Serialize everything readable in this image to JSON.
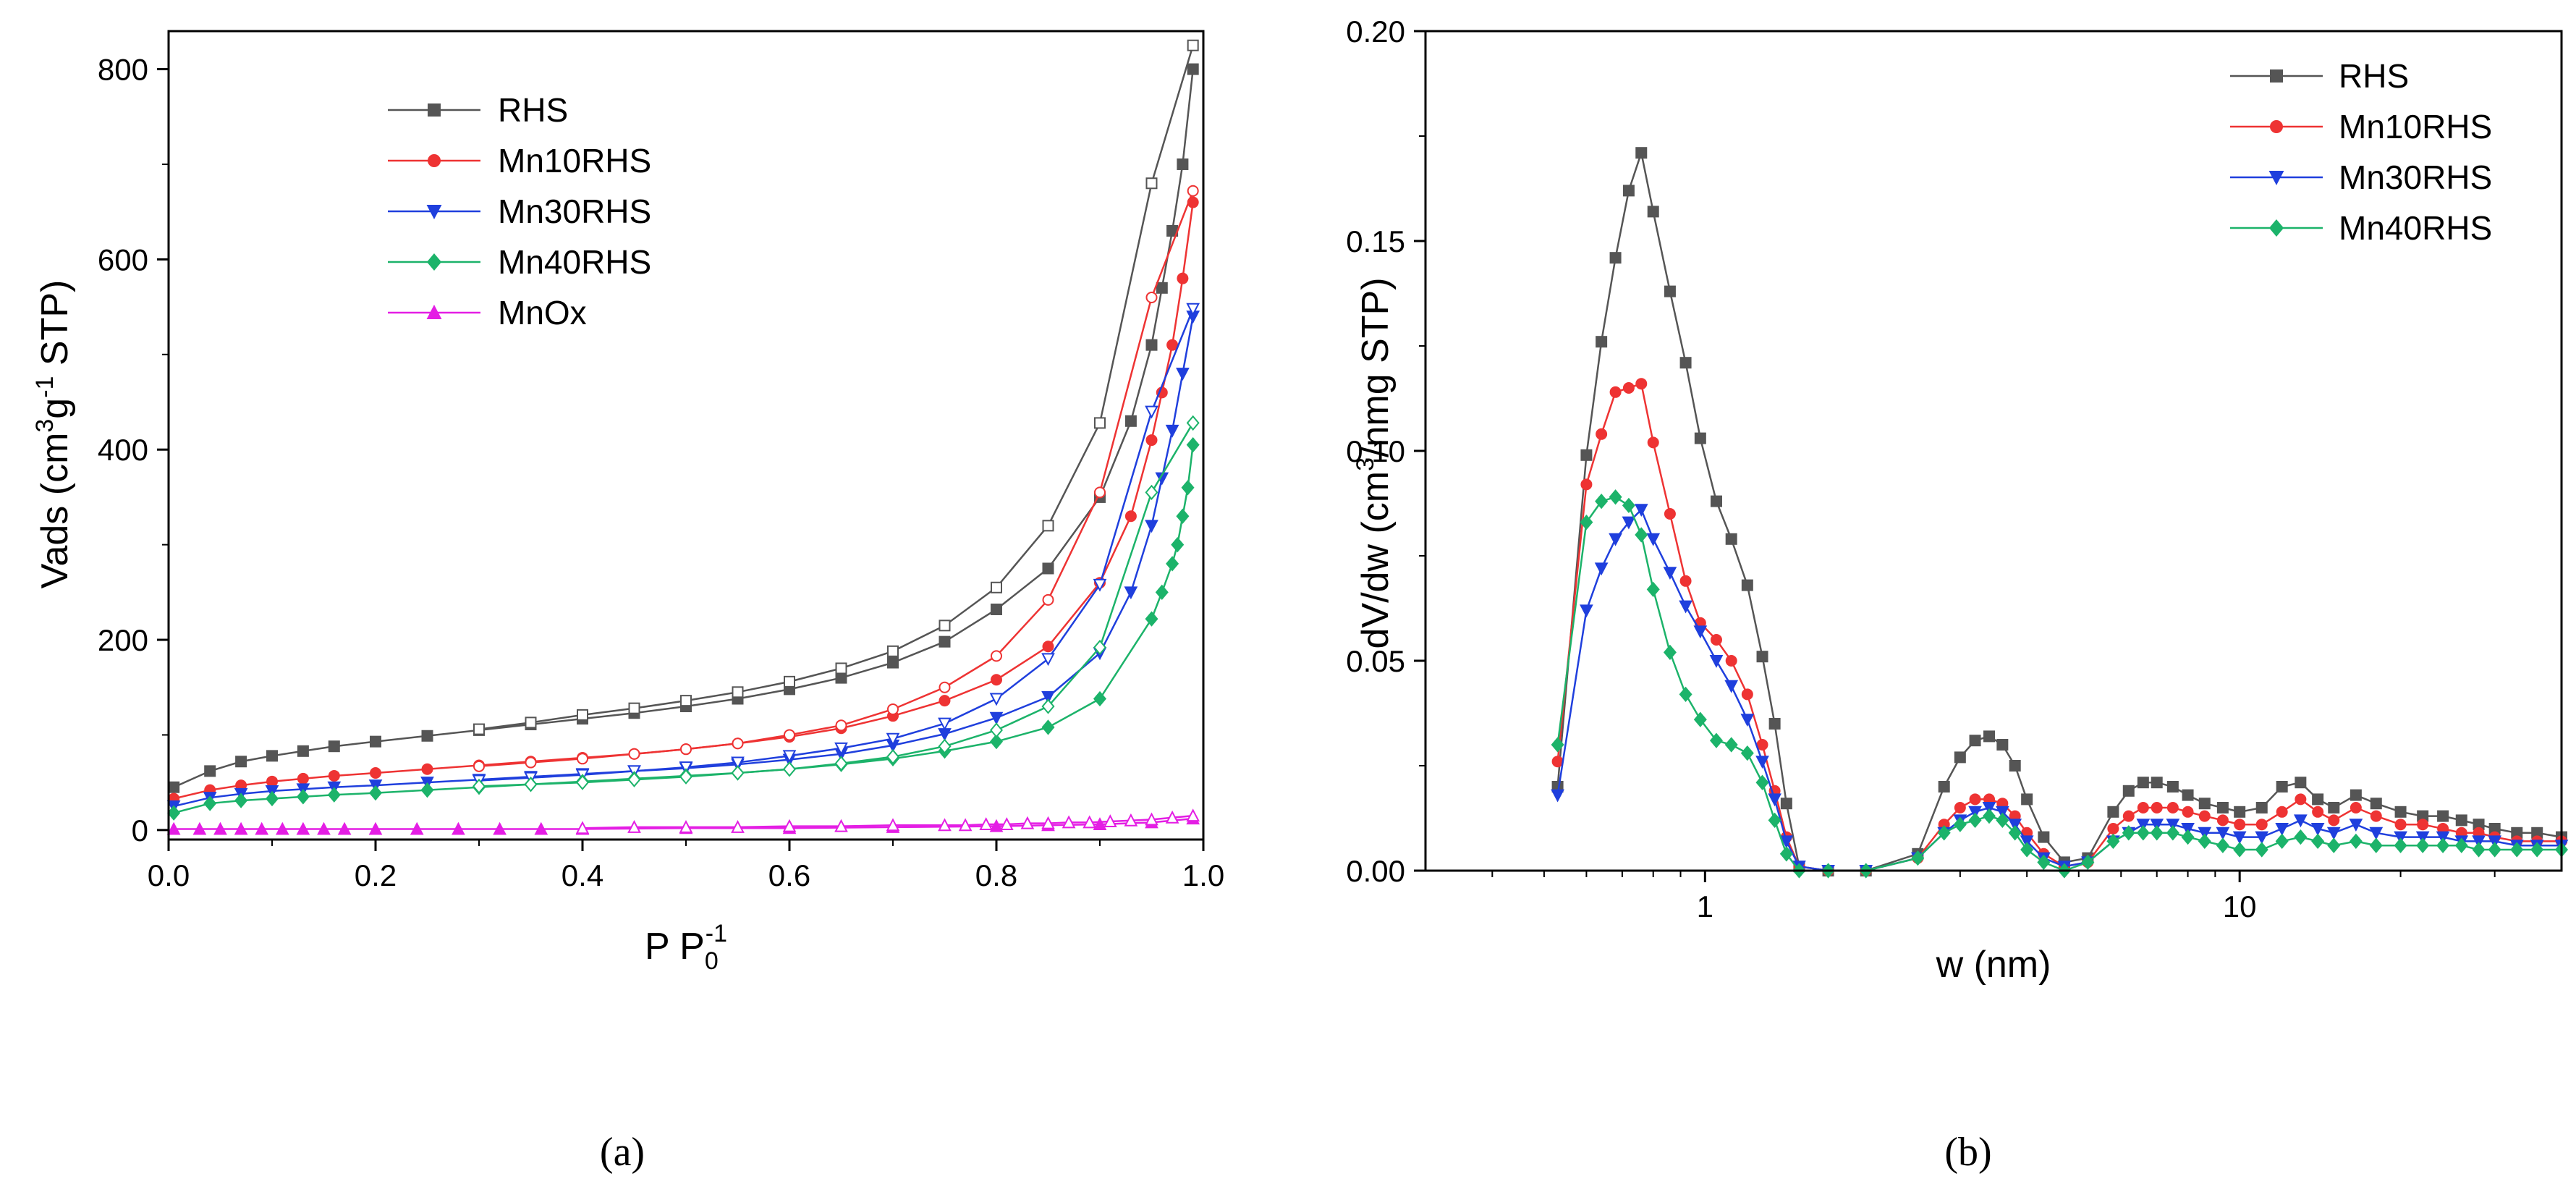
{
  "panels": {
    "a_label": "(a)",
    "b_label": "(b)"
  },
  "chart_data": [
    {
      "type": "scatter",
      "id": "a",
      "title": "",
      "xlabel": "P P",
      "xlabel_sub": "0",
      "xlabel_sup": "-1",
      "ylabel": "Vads (cm",
      "ylabel_sup1": "3",
      "ylabel_mid": "g",
      "ylabel_sup2": "-1",
      "ylabel_end": " STP)",
      "xlim": [
        0.0,
        1.0
      ],
      "ylim": [
        -10,
        840
      ],
      "xticks": [
        "0.0",
        "0.2",
        "0.4",
        "0.6",
        "0.8",
        "1.0"
      ],
      "yticks": [
        "0",
        "200",
        "400",
        "600",
        "800"
      ],
      "legend": [
        "RHS",
        "Mn10RHS",
        "Mn30RHS",
        "Mn40RHS",
        "MnOx"
      ],
      "series": [
        {
          "name": "RHS",
          "color": "#555555",
          "marker": "square",
          "adsorption": {
            "x": [
              0.005,
              0.04,
              0.07,
              0.1,
              0.13,
              0.16,
              0.2,
              0.25,
              0.3,
              0.35,
              0.4,
              0.45,
              0.5,
              0.55,
              0.6,
              0.65,
              0.7,
              0.75,
              0.8,
              0.85,
              0.9,
              0.93,
              0.95,
              0.96,
              0.97,
              0.98,
              0.99
            ],
            "y": [
              45,
              62,
              72,
              78,
              83,
              88,
              93,
              99,
              105,
              111,
              117,
              123,
              130,
              138,
              148,
              160,
              176,
              198,
              232,
              275,
              350,
              430,
              510,
              570,
              630,
              700,
              800
            ]
          },
          "desorption": {
            "x": [
              0.99,
              0.95,
              0.9,
              0.85,
              0.8,
              0.75,
              0.7,
              0.65,
              0.6,
              0.55,
              0.5,
              0.45,
              0.4,
              0.35,
              0.3
            ],
            "y": [
              825,
              680,
              428,
              320,
              255,
              215,
              188,
              170,
              156,
              145,
              136,
              128,
              121,
              113,
              106
            ]
          }
        },
        {
          "name": "Mn10RHS",
          "color": "#ee3333",
          "marker": "circle",
          "adsorption": {
            "x": [
              0.005,
              0.04,
              0.07,
              0.1,
              0.13,
              0.16,
              0.2,
              0.25,
              0.3,
              0.35,
              0.4,
              0.45,
              0.5,
              0.55,
              0.6,
              0.65,
              0.7,
              0.75,
              0.8,
              0.85,
              0.9,
              0.93,
              0.95,
              0.96,
              0.97,
              0.98,
              0.99
            ],
            "y": [
              33,
              42,
              47,
              51,
              54,
              57,
              60,
              64,
              68,
              72,
              76,
              80,
              85,
              91,
              98,
              107,
              120,
              136,
              158,
              193,
              260,
              330,
              410,
              460,
              510,
              580,
              660
            ]
          },
          "desorption": {
            "x": [
              0.99,
              0.95,
              0.9,
              0.85,
              0.8,
              0.75,
              0.7,
              0.65,
              0.6,
              0.55,
              0.5,
              0.45,
              0.4,
              0.35,
              0.3
            ],
            "y": [
              672,
              560,
              355,
              242,
              183,
              150,
              127,
              110,
              100,
              91,
              85,
              80,
              75,
              71,
              67
            ]
          }
        },
        {
          "name": "Mn30RHS",
          "color": "#1f3fdd",
          "marker": "triangle-down",
          "adsorption": {
            "x": [
              0.005,
              0.04,
              0.07,
              0.1,
              0.13,
              0.16,
              0.2,
              0.25,
              0.3,
              0.35,
              0.4,
              0.45,
              0.5,
              0.55,
              0.6,
              0.65,
              0.7,
              0.75,
              0.8,
              0.85,
              0.9,
              0.93,
              0.95,
              0.96,
              0.97,
              0.98,
              0.99
            ],
            "y": [
              25,
              34,
              38,
              41,
              43,
              45,
              47,
              50,
              53,
              56,
              59,
              62,
              65,
              69,
              74,
              80,
              89,
              101,
              118,
              140,
              186,
              250,
              320,
              370,
              420,
              480,
              540
            ]
          },
          "desorption": {
            "x": [
              0.99,
              0.95,
              0.9,
              0.85,
              0.8,
              0.75,
              0.7,
              0.65,
              0.6,
              0.55,
              0.5,
              0.45,
              0.4,
              0.35,
              0.3
            ],
            "y": [
              548,
              440,
              258,
              180,
              138,
              112,
              96,
              86,
              78,
              71,
              66,
              62,
              58,
              55,
              52
            ]
          }
        },
        {
          "name": "Mn40RHS",
          "color": "#1cb36a",
          "marker": "diamond",
          "adsorption": {
            "x": [
              0.005,
              0.04,
              0.07,
              0.1,
              0.13,
              0.16,
              0.2,
              0.25,
              0.3,
              0.35,
              0.4,
              0.45,
              0.5,
              0.55,
              0.6,
              0.65,
              0.7,
              0.75,
              0.8,
              0.85,
              0.9,
              0.95,
              0.96,
              0.97,
              0.975,
              0.98,
              0.985,
              0.99
            ],
            "y": [
              18,
              28,
              31,
              33,
              35,
              37,
              39,
              42,
              45,
              48,
              51,
              54,
              57,
              60,
              64,
              69,
              75,
              83,
              93,
              108,
              138,
              222,
              250,
              280,
              300,
              330,
              360,
              405
            ]
          },
          "desorption": {
            "x": [
              0.99,
              0.95,
              0.9,
              0.85,
              0.8,
              0.75,
              0.7,
              0.65,
              0.6,
              0.55,
              0.5,
              0.45,
              0.4,
              0.35,
              0.3
            ],
            "y": [
              428,
              355,
              192,
              130,
              105,
              88,
              77,
              70,
              64,
              60,
              56,
              53,
              50,
              48,
              46
            ]
          }
        },
        {
          "name": "MnOx",
          "color": "#e41ee4",
          "marker": "triangle-up",
          "adsorption": {
            "x": [
              0.005,
              0.03,
              0.05,
              0.07,
              0.09,
              0.11,
              0.13,
              0.15,
              0.17,
              0.2,
              0.24,
              0.28,
              0.32,
              0.36,
              0.4,
              0.5,
              0.6,
              0.7,
              0.8,
              0.85,
              0.9,
              0.95,
              0.99
            ],
            "y": [
              1,
              1,
              1,
              1,
              1,
              1,
              1,
              1,
              1,
              1,
              1,
              1,
              1,
              1,
              1,
              2,
              2,
              3,
              4,
              5,
              6,
              8,
              12
            ]
          },
          "desorption": {
            "x": [
              0.99,
              0.97,
              0.95,
              0.93,
              0.91,
              0.89,
              0.87,
              0.85,
              0.83,
              0.81,
              0.79,
              0.77,
              0.75,
              0.7,
              0.65,
              0.6,
              0.55,
              0.5,
              0.45,
              0.4
            ],
            "y": [
              15,
              13,
              11,
              10,
              9,
              8,
              8,
              7,
              7,
              6,
              6,
              5,
              5,
              5,
              4,
              4,
              3,
              3,
              3,
              2
            ]
          }
        }
      ]
    },
    {
      "type": "line",
      "id": "b",
      "title": "",
      "xlabel": "w (nm)",
      "ylabel": "dV/dw (cm",
      "ylabel_sup": "3",
      "ylabel_end": "/nmg STP)",
      "xscale": "log",
      "xlim": [
        0.3,
        40
      ],
      "ylim": [
        0.0,
        0.2
      ],
      "xticks": [
        "1",
        "10"
      ],
      "yticks": [
        "0.00",
        "0.05",
        "0.10",
        "0.15",
        "0.20"
      ],
      "legend": [
        "RHS",
        "Mn10RHS",
        "Mn30RHS",
        "Mn40RHS"
      ],
      "series": [
        {
          "name": "RHS",
          "color": "#555555",
          "marker": "square",
          "x": [
            0.53,
            0.6,
            0.64,
            0.68,
            0.72,
            0.76,
            0.8,
            0.86,
            0.92,
            0.98,
            1.05,
            1.12,
            1.2,
            1.28,
            1.35,
            1.42,
            1.5,
            1.7,
            2.0,
            2.5,
            2.8,
            3.0,
            3.2,
            3.4,
            3.6,
            3.8,
            4.0,
            4.3,
            4.7,
            5.2,
            5.8,
            6.2,
            6.6,
            7.0,
            7.5,
            8.0,
            8.6,
            9.3,
            10.0,
            11.0,
            12.0,
            13.0,
            14.0,
            15.0,
            16.5,
            18.0,
            20.0,
            22.0,
            24.0,
            26.0,
            28.0,
            30.0,
            33.0,
            36.0,
            40.0
          ],
          "y": [
            0.02,
            0.099,
            0.126,
            0.146,
            0.162,
            0.171,
            0.157,
            0.138,
            0.121,
            0.103,
            0.088,
            0.079,
            0.068,
            0.051,
            0.035,
            0.016,
            0.001,
            0.0,
            0.0,
            0.004,
            0.02,
            0.027,
            0.031,
            0.032,
            0.03,
            0.025,
            0.017,
            0.008,
            0.002,
            0.003,
            0.014,
            0.019,
            0.021,
            0.021,
            0.02,
            0.018,
            0.016,
            0.015,
            0.014,
            0.015,
            0.02,
            0.021,
            0.017,
            0.015,
            0.018,
            0.016,
            0.014,
            0.013,
            0.013,
            0.012,
            0.011,
            0.01,
            0.009,
            0.009,
            0.008
          ]
        },
        {
          "name": "Mn10RHS",
          "color": "#ee3333",
          "marker": "circle",
          "x": [
            0.53,
            0.6,
            0.64,
            0.68,
            0.72,
            0.76,
            0.8,
            0.86,
            0.92,
            0.98,
            1.05,
            1.12,
            1.2,
            1.28,
            1.35,
            1.42,
            1.5,
            1.7,
            2.0,
            2.5,
            2.8,
            3.0,
            3.2,
            3.4,
            3.6,
            3.8,
            4.0,
            4.3,
            4.7,
            5.2,
            5.8,
            6.2,
            6.6,
            7.0,
            7.5,
            8.0,
            8.6,
            9.3,
            10.0,
            11.0,
            12.0,
            13.0,
            14.0,
            15.0,
            16.5,
            18.0,
            20.0,
            22.0,
            24.0,
            26.0,
            28.0,
            30.0,
            33.0,
            36.0,
            40.0
          ],
          "y": [
            0.026,
            0.092,
            0.104,
            0.114,
            0.115,
            0.116,
            0.102,
            0.085,
            0.069,
            0.059,
            0.055,
            0.05,
            0.042,
            0.03,
            0.019,
            0.008,
            0.001,
            0.0,
            0.0,
            0.003,
            0.011,
            0.015,
            0.017,
            0.017,
            0.016,
            0.013,
            0.009,
            0.004,
            0.001,
            0.002,
            0.01,
            0.013,
            0.015,
            0.015,
            0.015,
            0.014,
            0.013,
            0.012,
            0.011,
            0.011,
            0.014,
            0.017,
            0.014,
            0.012,
            0.015,
            0.013,
            0.011,
            0.011,
            0.01,
            0.009,
            0.009,
            0.008,
            0.007,
            0.007,
            0.007
          ]
        },
        {
          "name": "Mn30RHS",
          "color": "#1f3fdd",
          "marker": "triangle-down",
          "x": [
            0.53,
            0.6,
            0.64,
            0.68,
            0.72,
            0.76,
            0.8,
            0.86,
            0.92,
            0.98,
            1.05,
            1.12,
            1.2,
            1.28,
            1.35,
            1.42,
            1.5,
            1.7,
            2.0,
            2.5,
            2.8,
            3.0,
            3.2,
            3.4,
            3.6,
            3.8,
            4.0,
            4.3,
            4.7,
            5.2,
            5.8,
            6.2,
            6.6,
            7.0,
            7.5,
            8.0,
            8.6,
            9.3,
            10.0,
            11.0,
            12.0,
            13.0,
            14.0,
            15.0,
            16.5,
            18.0,
            20.0,
            22.0,
            24.0,
            26.0,
            28.0,
            30.0,
            33.0,
            36.0,
            40.0
          ],
          "y": [
            0.018,
            0.062,
            0.072,
            0.079,
            0.083,
            0.086,
            0.079,
            0.071,
            0.063,
            0.057,
            0.05,
            0.044,
            0.036,
            0.026,
            0.017,
            0.007,
            0.001,
            0.0,
            0.0,
            0.003,
            0.009,
            0.012,
            0.014,
            0.015,
            0.014,
            0.011,
            0.007,
            0.003,
            0.001,
            0.002,
            0.007,
            0.009,
            0.011,
            0.011,
            0.011,
            0.01,
            0.009,
            0.009,
            0.008,
            0.008,
            0.01,
            0.012,
            0.01,
            0.009,
            0.011,
            0.009,
            0.008,
            0.008,
            0.008,
            0.007,
            0.007,
            0.007,
            0.006,
            0.006,
            0.006
          ]
        },
        {
          "name": "Mn40RHS",
          "color": "#1cb36a",
          "marker": "diamond",
          "x": [
            0.53,
            0.6,
            0.64,
            0.68,
            0.72,
            0.76,
            0.8,
            0.86,
            0.92,
            0.98,
            1.05,
            1.12,
            1.2,
            1.28,
            1.35,
            1.42,
            1.5,
            1.7,
            2.0,
            2.5,
            2.8,
            3.0,
            3.2,
            3.4,
            3.6,
            3.8,
            4.0,
            4.3,
            4.7,
            5.2,
            5.8,
            6.2,
            6.6,
            7.0,
            7.5,
            8.0,
            8.6,
            9.3,
            10.0,
            11.0,
            12.0,
            13.0,
            14.0,
            15.0,
            16.5,
            18.0,
            20.0,
            22.0,
            24.0,
            26.0,
            28.0,
            30.0,
            33.0,
            36.0,
            40.0
          ],
          "y": [
            0.03,
            0.083,
            0.088,
            0.089,
            0.087,
            0.08,
            0.067,
            0.052,
            0.042,
            0.036,
            0.031,
            0.03,
            0.028,
            0.021,
            0.012,
            0.004,
            0.0,
            0.0,
            0.0,
            0.003,
            0.009,
            0.011,
            0.012,
            0.013,
            0.012,
            0.009,
            0.005,
            0.002,
            0.0,
            0.002,
            0.007,
            0.009,
            0.009,
            0.009,
            0.009,
            0.008,
            0.007,
            0.006,
            0.005,
            0.005,
            0.007,
            0.008,
            0.007,
            0.006,
            0.007,
            0.006,
            0.006,
            0.006,
            0.006,
            0.006,
            0.005,
            0.005,
            0.005,
            0.005,
            0.005
          ]
        }
      ]
    }
  ]
}
